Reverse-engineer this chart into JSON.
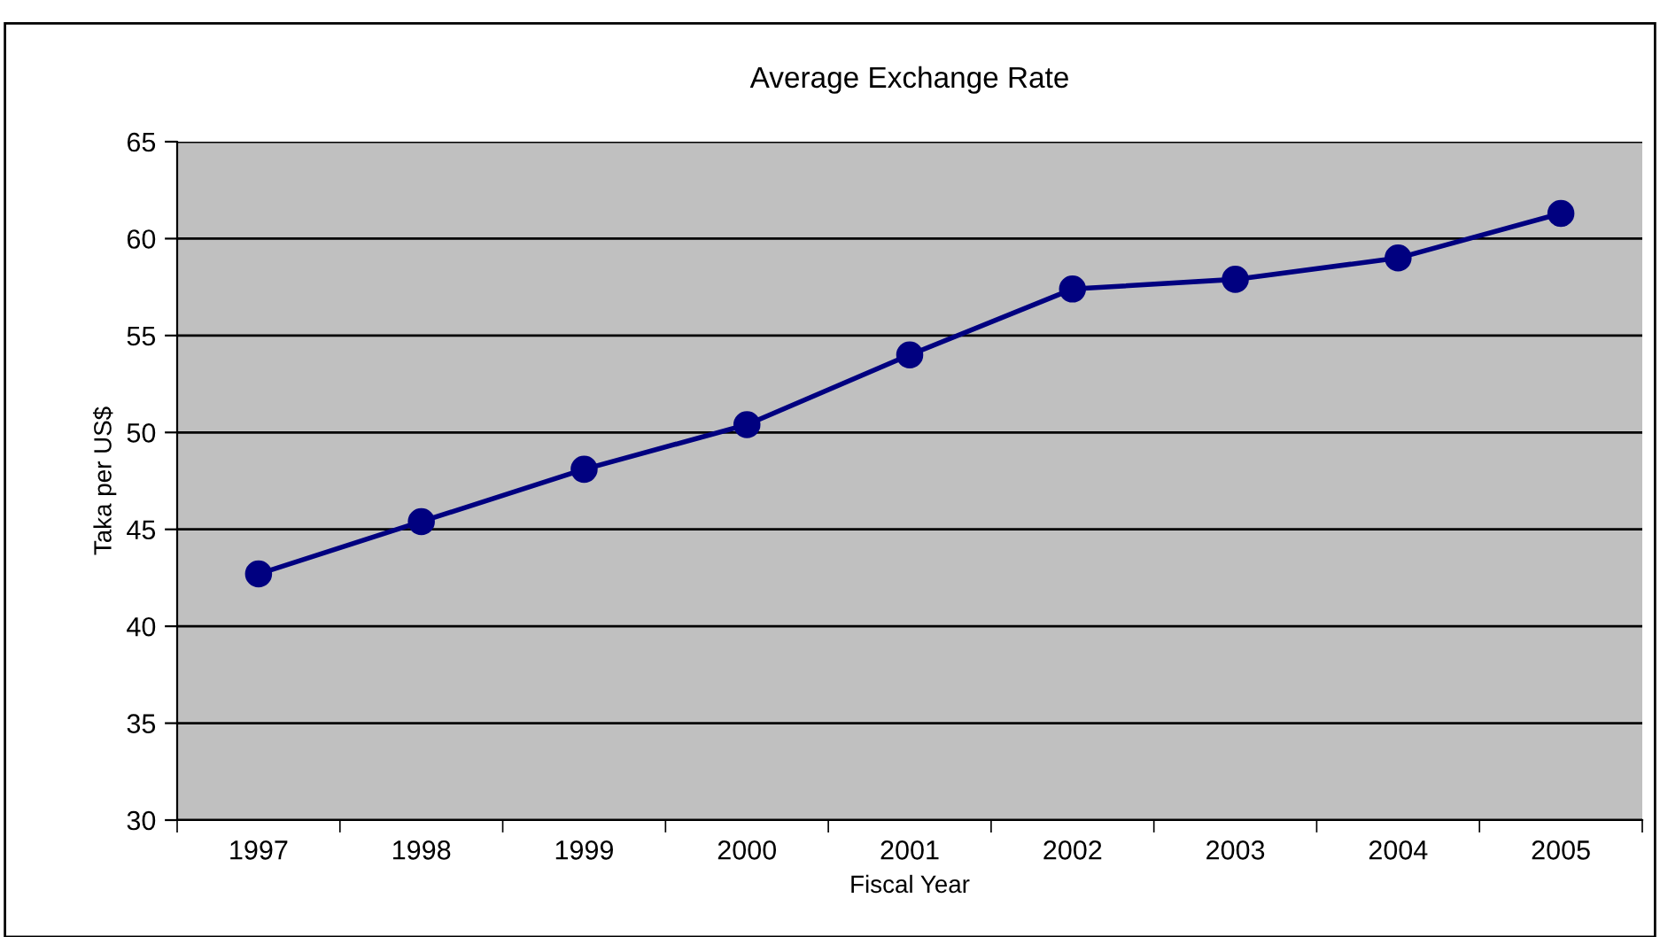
{
  "chart_data": {
    "type": "line",
    "title": "Average Exchange Rate",
    "xlabel": "Fiscal Year",
    "ylabel": "Taka per US$",
    "categories": [
      "1997",
      "1998",
      "1999",
      "2000",
      "2001",
      "2002",
      "2003",
      "2004",
      "2005"
    ],
    "series": [
      {
        "color": "#000080",
        "values": [
          42.7,
          45.4,
          48.1,
          50.4,
          54.0,
          57.4,
          57.9,
          59.0,
          61.3
        ]
      }
    ],
    "ylim": [
      30,
      65
    ],
    "yticks": [
      30,
      35,
      40,
      45,
      50,
      55,
      60,
      65
    ],
    "grid": "y",
    "marker": "circle",
    "line_style": "solid"
  }
}
